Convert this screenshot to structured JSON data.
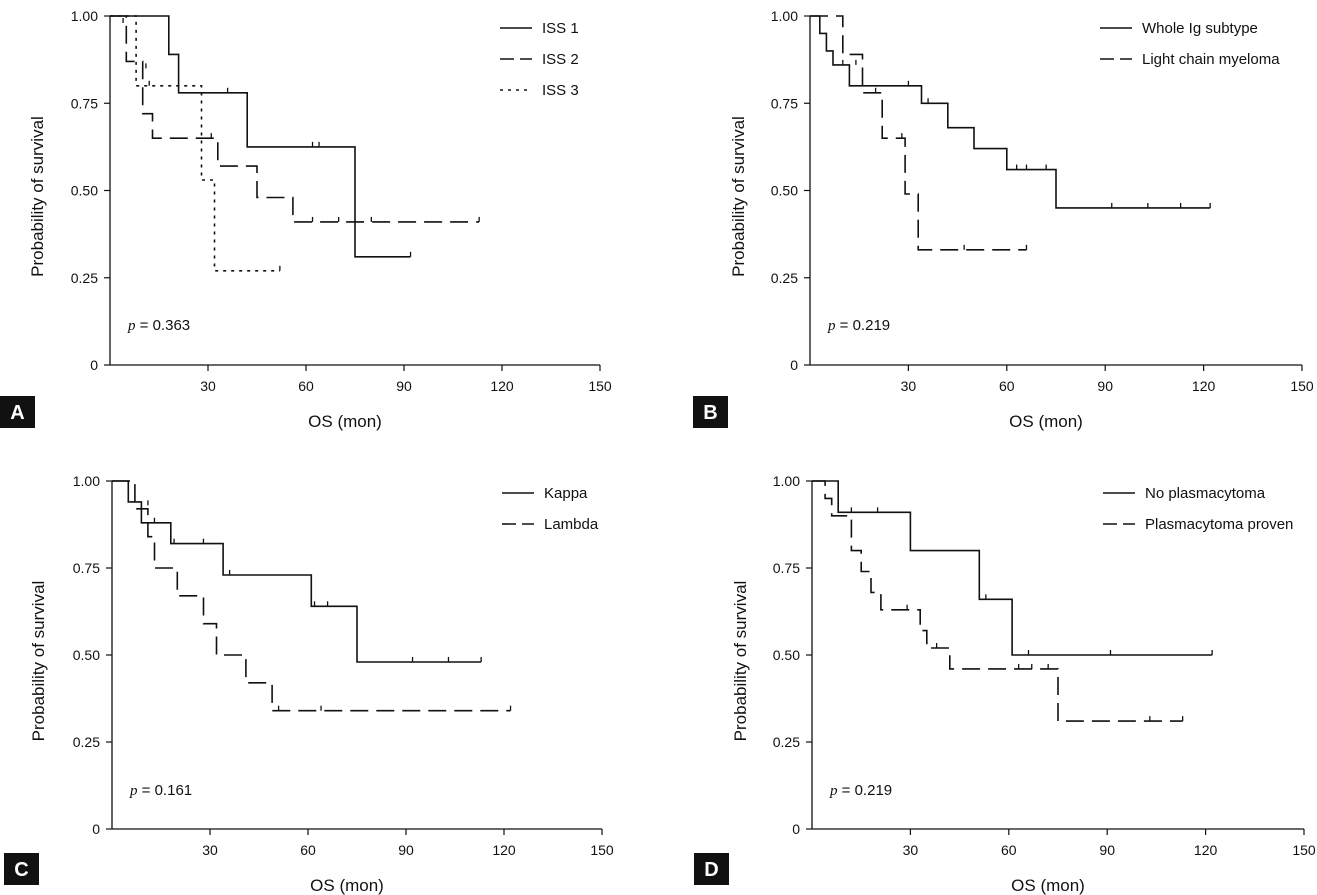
{
  "figure": {
    "colors": {
      "line": "#111111",
      "panel_label_bg": "#111111",
      "panel_label_text": "#ffffff"
    }
  },
  "chart_data": [
    {
      "panel": "A",
      "type": "line",
      "subtype": "kaplan-meier",
      "xlabel": "OS (mon)",
      "ylabel": "Probability of survival",
      "xlim": [
        0,
        150
      ],
      "ylim": [
        0,
        1
      ],
      "xticks": [
        "30",
        "60",
        "90",
        "120",
        "150"
      ],
      "yticks": [
        "0",
        "0.25",
        "0.50",
        "0.75",
        "1.00"
      ],
      "p_prefix": "p",
      "p_value": " = 0.363",
      "legend_position": "top-right",
      "series": [
        {
          "name": "ISS 1",
          "dash": "solid",
          "steps": [
            [
              0,
              1.0
            ],
            [
              18,
              1.0
            ],
            [
              18,
              0.89
            ],
            [
              21,
              0.89
            ],
            [
              21,
              0.78
            ],
            [
              42,
              0.78
            ],
            [
              42,
              0.625
            ],
            [
              75,
              0.625
            ],
            [
              75,
              0.31
            ],
            [
              92,
              0.31
            ]
          ],
          "censors": [
            [
              36,
              0.78
            ],
            [
              62,
              0.625
            ],
            [
              64,
              0.625
            ],
            [
              92,
              0.31
            ]
          ]
        },
        {
          "name": "ISS 2",
          "dash": "long",
          "steps": [
            [
              0,
              1.0
            ],
            [
              5,
              1.0
            ],
            [
              5,
              0.87
            ],
            [
              10,
              0.87
            ],
            [
              10,
              0.72
            ],
            [
              13,
              0.72
            ],
            [
              13,
              0.65
            ],
            [
              33,
              0.65
            ],
            [
              33,
              0.57
            ],
            [
              45,
              0.57
            ],
            [
              45,
              0.48
            ],
            [
              56,
              0.48
            ],
            [
              56,
              0.41
            ],
            [
              113,
              0.41
            ]
          ],
          "censors": [
            [
              11,
              0.85
            ],
            [
              31,
              0.65
            ],
            [
              62,
              0.41
            ],
            [
              70,
              0.41
            ],
            [
              80,
              0.41
            ],
            [
              113,
              0.41
            ]
          ]
        },
        {
          "name": "ISS 3",
          "dash": "dotted",
          "steps": [
            [
              0,
              1.0
            ],
            [
              8,
              1.0
            ],
            [
              8,
              0.8
            ],
            [
              28,
              0.8
            ],
            [
              28,
              0.53
            ],
            [
              32,
              0.53
            ],
            [
              32,
              0.27
            ],
            [
              52,
              0.27
            ]
          ],
          "censors": [
            [
              4,
              0.98
            ],
            [
              12,
              0.8
            ],
            [
              52,
              0.27
            ]
          ]
        }
      ]
    },
    {
      "panel": "B",
      "type": "line",
      "subtype": "kaplan-meier",
      "xlabel": "OS (mon)",
      "ylabel": "Probability of survival",
      "xlim": [
        0,
        150
      ],
      "ylim": [
        0,
        1
      ],
      "xticks": [
        "30",
        "60",
        "90",
        "120",
        "150"
      ],
      "yticks": [
        "0",
        "0.25",
        "0.50",
        "0.75",
        "1.00"
      ],
      "p_prefix": "p",
      "p_value": " = 0.219",
      "legend_position": "top-right",
      "series": [
        {
          "name": "Whole Ig subtype",
          "dash": "solid",
          "steps": [
            [
              0,
              1.0
            ],
            [
              3,
              1.0
            ],
            [
              3,
              0.95
            ],
            [
              5,
              0.95
            ],
            [
              5,
              0.9
            ],
            [
              7,
              0.9
            ],
            [
              7,
              0.86
            ],
            [
              12,
              0.86
            ],
            [
              12,
              0.8
            ],
            [
              34,
              0.8
            ],
            [
              34,
              0.75
            ],
            [
              42,
              0.75
            ],
            [
              42,
              0.68
            ],
            [
              50,
              0.68
            ],
            [
              50,
              0.62
            ],
            [
              60,
              0.62
            ],
            [
              60,
              0.56
            ],
            [
              75,
              0.56
            ],
            [
              75,
              0.45
            ],
            [
              122,
              0.45
            ]
          ],
          "censors": [
            [
              10,
              0.86
            ],
            [
              30,
              0.8
            ],
            [
              36,
              0.75
            ],
            [
              63,
              0.56
            ],
            [
              66,
              0.56
            ],
            [
              72,
              0.56
            ],
            [
              92,
              0.45
            ],
            [
              103,
              0.45
            ],
            [
              113,
              0.45
            ],
            [
              122,
              0.45
            ]
          ]
        },
        {
          "name": "Light chain myeloma",
          "dash": "long",
          "steps": [
            [
              0,
              1.0
            ],
            [
              10,
              1.0
            ],
            [
              10,
              0.89
            ],
            [
              16,
              0.89
            ],
            [
              16,
              0.78
            ],
            [
              22,
              0.78
            ],
            [
              22,
              0.65
            ],
            [
              29,
              0.65
            ],
            [
              29,
              0.49
            ],
            [
              33,
              0.49
            ],
            [
              33,
              0.33
            ],
            [
              66,
              0.33
            ]
          ],
          "censors": [
            [
              14,
              0.86
            ],
            [
              20,
              0.78
            ],
            [
              28,
              0.65
            ],
            [
              47,
              0.33
            ],
            [
              66,
              0.33
            ]
          ]
        }
      ]
    },
    {
      "panel": "C",
      "type": "line",
      "subtype": "kaplan-meier",
      "xlabel": "OS (mon)",
      "ylabel": "Probability of survival",
      "xlim": [
        0,
        150
      ],
      "ylim": [
        0,
        1
      ],
      "xticks": [
        "30",
        "60",
        "90",
        "120",
        "150"
      ],
      "yticks": [
        "0",
        "0.25",
        "0.50",
        "0.75",
        "1.00"
      ],
      "p_prefix": "p",
      "p_value": " = 0.161",
      "legend_position": "top-right",
      "series": [
        {
          "name": "Kappa",
          "dash": "solid",
          "steps": [
            [
              0,
              1.0
            ],
            [
              5,
              1.0
            ],
            [
              5,
              0.94
            ],
            [
              9,
              0.94
            ],
            [
              9,
              0.88
            ],
            [
              18,
              0.88
            ],
            [
              18,
              0.82
            ],
            [
              34,
              0.82
            ],
            [
              34,
              0.73
            ],
            [
              61,
              0.73
            ],
            [
              61,
              0.64
            ],
            [
              75,
              0.64
            ],
            [
              75,
              0.48
            ],
            [
              113,
              0.48
            ]
          ],
          "censors": [
            [
              13,
              0.88
            ],
            [
              19,
              0.82
            ],
            [
              28,
              0.82
            ],
            [
              36,
              0.73
            ],
            [
              62,
              0.64
            ],
            [
              66,
              0.64
            ],
            [
              92,
              0.48
            ],
            [
              103,
              0.48
            ],
            [
              113,
              0.48
            ]
          ]
        },
        {
          "name": "Lambda",
          "dash": "long",
          "steps": [
            [
              0,
              1.0
            ],
            [
              7,
              1.0
            ],
            [
              7,
              0.92
            ],
            [
              11,
              0.92
            ],
            [
              11,
              0.84
            ],
            [
              13,
              0.84
            ],
            [
              13,
              0.75
            ],
            [
              20,
              0.75
            ],
            [
              20,
              0.67
            ],
            [
              28,
              0.67
            ],
            [
              28,
              0.59
            ],
            [
              32,
              0.59
            ],
            [
              32,
              0.5
            ],
            [
              41,
              0.5
            ],
            [
              41,
              0.42
            ],
            [
              49,
              0.42
            ],
            [
              49,
              0.34
            ],
            [
              122,
              0.34
            ]
          ],
          "censors": [
            [
              5,
              0.97
            ],
            [
              11,
              0.93
            ],
            [
              51,
              0.34
            ],
            [
              64,
              0.34
            ],
            [
              122,
              0.34
            ]
          ]
        }
      ]
    },
    {
      "panel": "D",
      "type": "line",
      "subtype": "kaplan-meier",
      "xlabel": "OS (mon)",
      "ylabel": "Probability of survival",
      "xlim": [
        0,
        150
      ],
      "ylim": [
        0,
        1
      ],
      "xticks": [
        "30",
        "60",
        "90",
        "120",
        "150"
      ],
      "yticks": [
        "0",
        "0.25",
        "0.50",
        "0.75",
        "1.00"
      ],
      "p_prefix": "p",
      "p_value": " = 0.219",
      "legend_position": "top-right",
      "series": [
        {
          "name": "No plasmacytoma",
          "dash": "solid",
          "steps": [
            [
              0,
              1.0
            ],
            [
              8,
              1.0
            ],
            [
              8,
              0.91
            ],
            [
              30,
              0.91
            ],
            [
              30,
              0.8
            ],
            [
              51,
              0.8
            ],
            [
              51,
              0.66
            ],
            [
              61,
              0.66
            ],
            [
              61,
              0.5
            ],
            [
              122,
              0.5
            ]
          ],
          "censors": [
            [
              12,
              0.91
            ],
            [
              20,
              0.91
            ],
            [
              53,
              0.66
            ],
            [
              66,
              0.5
            ],
            [
              91,
              0.5
            ],
            [
              122,
              0.5
            ]
          ]
        },
        {
          "name": "Plasmacytoma proven",
          "dash": "long",
          "steps": [
            [
              0,
              1.0
            ],
            [
              4,
              1.0
            ],
            [
              4,
              0.95
            ],
            [
              6,
              0.95
            ],
            [
              6,
              0.9
            ],
            [
              12,
              0.9
            ],
            [
              12,
              0.8
            ],
            [
              15,
              0.8
            ],
            [
              15,
              0.74
            ],
            [
              18,
              0.74
            ],
            [
              18,
              0.68
            ],
            [
              21,
              0.68
            ],
            [
              21,
              0.63
            ],
            [
              33,
              0.63
            ],
            [
              33,
              0.57
            ],
            [
              35,
              0.57
            ],
            [
              35,
              0.52
            ],
            [
              42,
              0.52
            ],
            [
              42,
              0.46
            ],
            [
              75,
              0.46
            ],
            [
              75,
              0.31
            ],
            [
              113,
              0.31
            ]
          ],
          "censors": [
            [
              29,
              0.63
            ],
            [
              38,
              0.52
            ],
            [
              63,
              0.46
            ],
            [
              67,
              0.46
            ],
            [
              72,
              0.46
            ],
            [
              103,
              0.31
            ],
            [
              113,
              0.31
            ]
          ]
        }
      ]
    }
  ]
}
